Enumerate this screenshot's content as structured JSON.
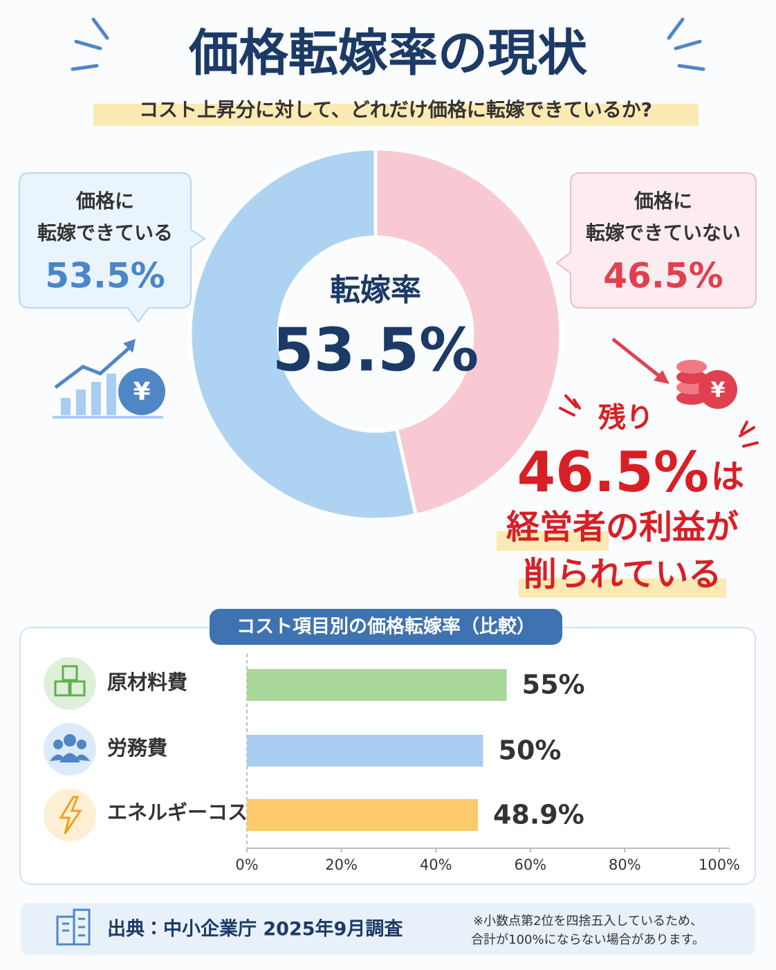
{
  "header": {
    "title": "価格転嫁率の現状",
    "subtitle": "コスト上昇分に対して、どれだけ価格に転嫁できているか?"
  },
  "chart_data": [
    {
      "type": "pie",
      "center_label": "転嫁率",
      "categories": [
        "価格に\n転嫁できている",
        "価格に\n転嫁できていない"
      ],
      "values": [
        53.5,
        46.5
      ],
      "value_labels": [
        "53.5%",
        "46.5%"
      ],
      "colors": [
        "#aed3f2",
        "#f9c9d3"
      ],
      "annotation": {
        "lead": "残り",
        "suffix": "は",
        "lines": [
          "経営者の利益が",
          "削られている"
        ]
      }
    },
    {
      "type": "bar",
      "title": "コスト項目別の価格転嫁率（比較）",
      "categories": [
        "原材料費",
        "労務費",
        "エネルギーコスト"
      ],
      "values": [
        55,
        50,
        48.9
      ],
      "value_labels": [
        "55%",
        "50%",
        "48.9%"
      ],
      "colors": [
        "#a9d79a",
        "#a9cdf0",
        "#fcc96b"
      ],
      "xlim": [
        0,
        100
      ],
      "xticks": [
        {
          "value": 0,
          "label": "0%"
        },
        {
          "value": 20,
          "label": "20%"
        },
        {
          "value": 40,
          "label": "40%"
        },
        {
          "value": 60,
          "label": "60%"
        },
        {
          "value": 80,
          "label": "80%"
        },
        {
          "value": 100,
          "label": "100%"
        }
      ]
    }
  ],
  "footer": {
    "source": "出典：中小企業庁 2025年9月調査",
    "note": "※小数点第2位を四捨五入しているため、\n合計が100%にならない場合があります。"
  }
}
